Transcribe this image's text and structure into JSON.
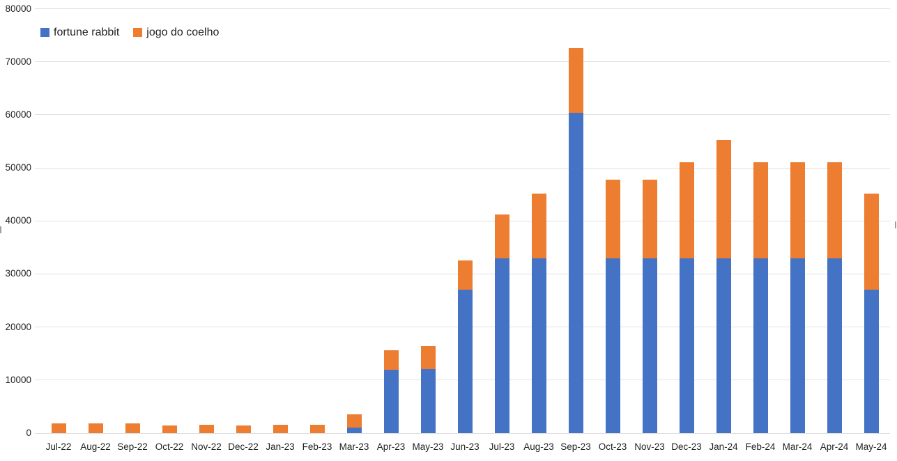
{
  "legend": {
    "items": [
      {
        "label": "fortune rabbit",
        "color": "#4472c4"
      },
      {
        "label": "jogo do coelho",
        "color": "#ed7d31"
      }
    ]
  },
  "chart_data": {
    "type": "bar",
    "stacked": true,
    "title": "",
    "xlabel": "",
    "ylabel": "",
    "categories": [
      "Jul-22",
      "Aug-22",
      "Sep-22",
      "Oct-22",
      "Nov-22",
      "Dec-22",
      "Jan-23",
      "Feb-23",
      "Mar-23",
      "Apr-23",
      "May-23",
      "Jun-23",
      "Jul-23",
      "Aug-23",
      "Sep-23",
      "Oct-23",
      "Nov-23",
      "Dec-23",
      "Jan-24",
      "Feb-24",
      "Mar-24",
      "Apr-24",
      "May-24"
    ],
    "series": [
      {
        "name": "fortune rabbit",
        "color": "#4472c4",
        "values": [
          0,
          0,
          0,
          0,
          0,
          0,
          0,
          0,
          1100,
          12000,
          12100,
          27000,
          33000,
          33000,
          60400,
          33000,
          33000,
          33000,
          33000,
          33000,
          33000,
          33000,
          27000
        ]
      },
      {
        "name": "jogo do coelho",
        "color": "#ed7d31",
        "values": [
          1800,
          1850,
          1800,
          1450,
          1550,
          1450,
          1600,
          1600,
          2500,
          3600,
          4300,
          5500,
          8200,
          12200,
          12200,
          14800,
          14800,
          18100,
          22300,
          18100,
          18100,
          18100,
          18200
        ]
      }
    ],
    "ylim": [
      0,
      80000
    ],
    "ytick_step": 10000,
    "ytick_labels": [
      "0",
      "10000",
      "20000",
      "30000",
      "40000",
      "50000",
      "60000",
      "70000",
      "80000"
    ],
    "grid": "horizontal-only",
    "gridline_color": "#e0e0e0",
    "legend_position": "top-left",
    "axis_text_color": "#1f1f1f"
  }
}
